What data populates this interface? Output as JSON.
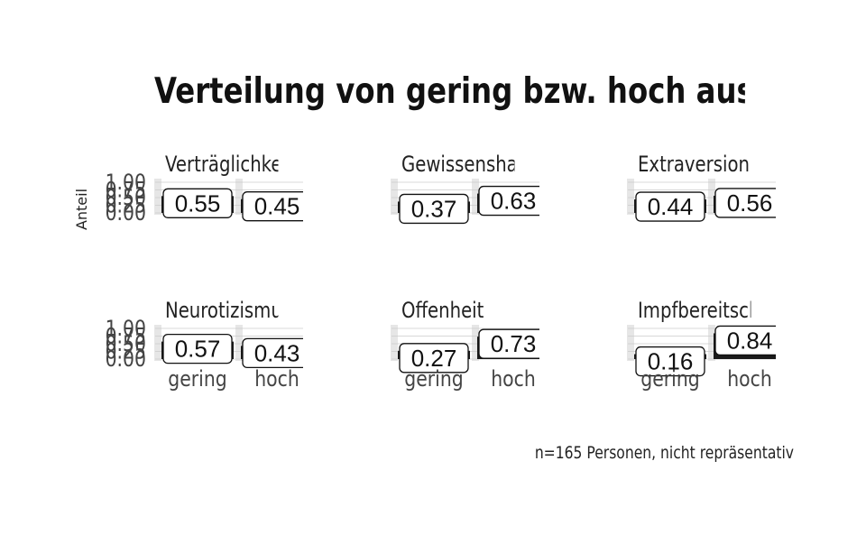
{
  "chart_data": {
    "type": "bar",
    "title": "Verteilung von gering bzw. hoch ausgeprägten",
    "ylabel": "Anteil",
    "caption": "n=165 Personen, nicht repräsentativ",
    "categories": [
      "gering",
      "hoch"
    ],
    "y_ticks": [
      "0.00",
      "0.25",
      "0.50",
      "0.75",
      "1.00"
    ],
    "ylim": [
      0,
      1
    ],
    "grid": true,
    "panels": [
      {
        "name": "Verträglichkeit",
        "values": [
          0.55,
          0.45
        ],
        "labels": [
          "0.55",
          "0.45"
        ]
      },
      {
        "name": "Gewissenshaftigkeit",
        "values": [
          0.37,
          0.63
        ],
        "labels": [
          "0.37",
          "0.63"
        ]
      },
      {
        "name": "Extraversion",
        "values": [
          0.44,
          0.56
        ],
        "labels": [
          "0.44",
          "0.56"
        ]
      },
      {
        "name": "Neurotizismus",
        "values": [
          0.57,
          0.43
        ],
        "labels": [
          "0.57",
          "0.43"
        ]
      },
      {
        "name": "Offenheit",
        "values": [
          0.27,
          0.73
        ],
        "labels": [
          "0.27",
          "0.73"
        ]
      },
      {
        "name": "Impfbereitschaft",
        "values": [
          0.16,
          0.84
        ],
        "labels": [
          "0.16",
          "0.84"
        ]
      }
    ]
  }
}
